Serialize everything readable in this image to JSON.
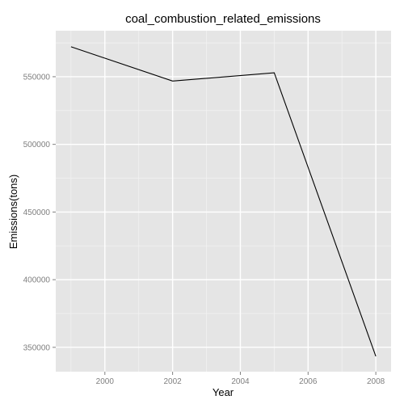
{
  "chart_data": {
    "type": "line",
    "title": "coal_combustion_related_emissions",
    "xlabel": "Year",
    "ylabel": "Emissions(tons)",
    "x": [
      1999,
      2002,
      2005,
      2008
    ],
    "series": [
      {
        "values": [
          572126,
          546789,
          552881,
          343432
        ]
      }
    ],
    "xlim": [
      1998.55,
      2008.45
    ],
    "ylim": [
      332000,
      584000
    ],
    "xticks": [
      2000,
      2002,
      2004,
      2006,
      2008
    ],
    "xtick_labels": [
      "2000",
      "2002",
      "2004",
      "2006",
      "2008"
    ],
    "yticks": [
      350000,
      400000,
      450000,
      500000,
      550000
    ],
    "ytick_labels": [
      "350000",
      "400000",
      "450000",
      "500000",
      "550000"
    ],
    "grid": true,
    "colors": {
      "panel": "#e5e5e5",
      "grid_major": "#ffffff",
      "grid_minor": "#f2f2f2",
      "line": "#000000"
    }
  }
}
